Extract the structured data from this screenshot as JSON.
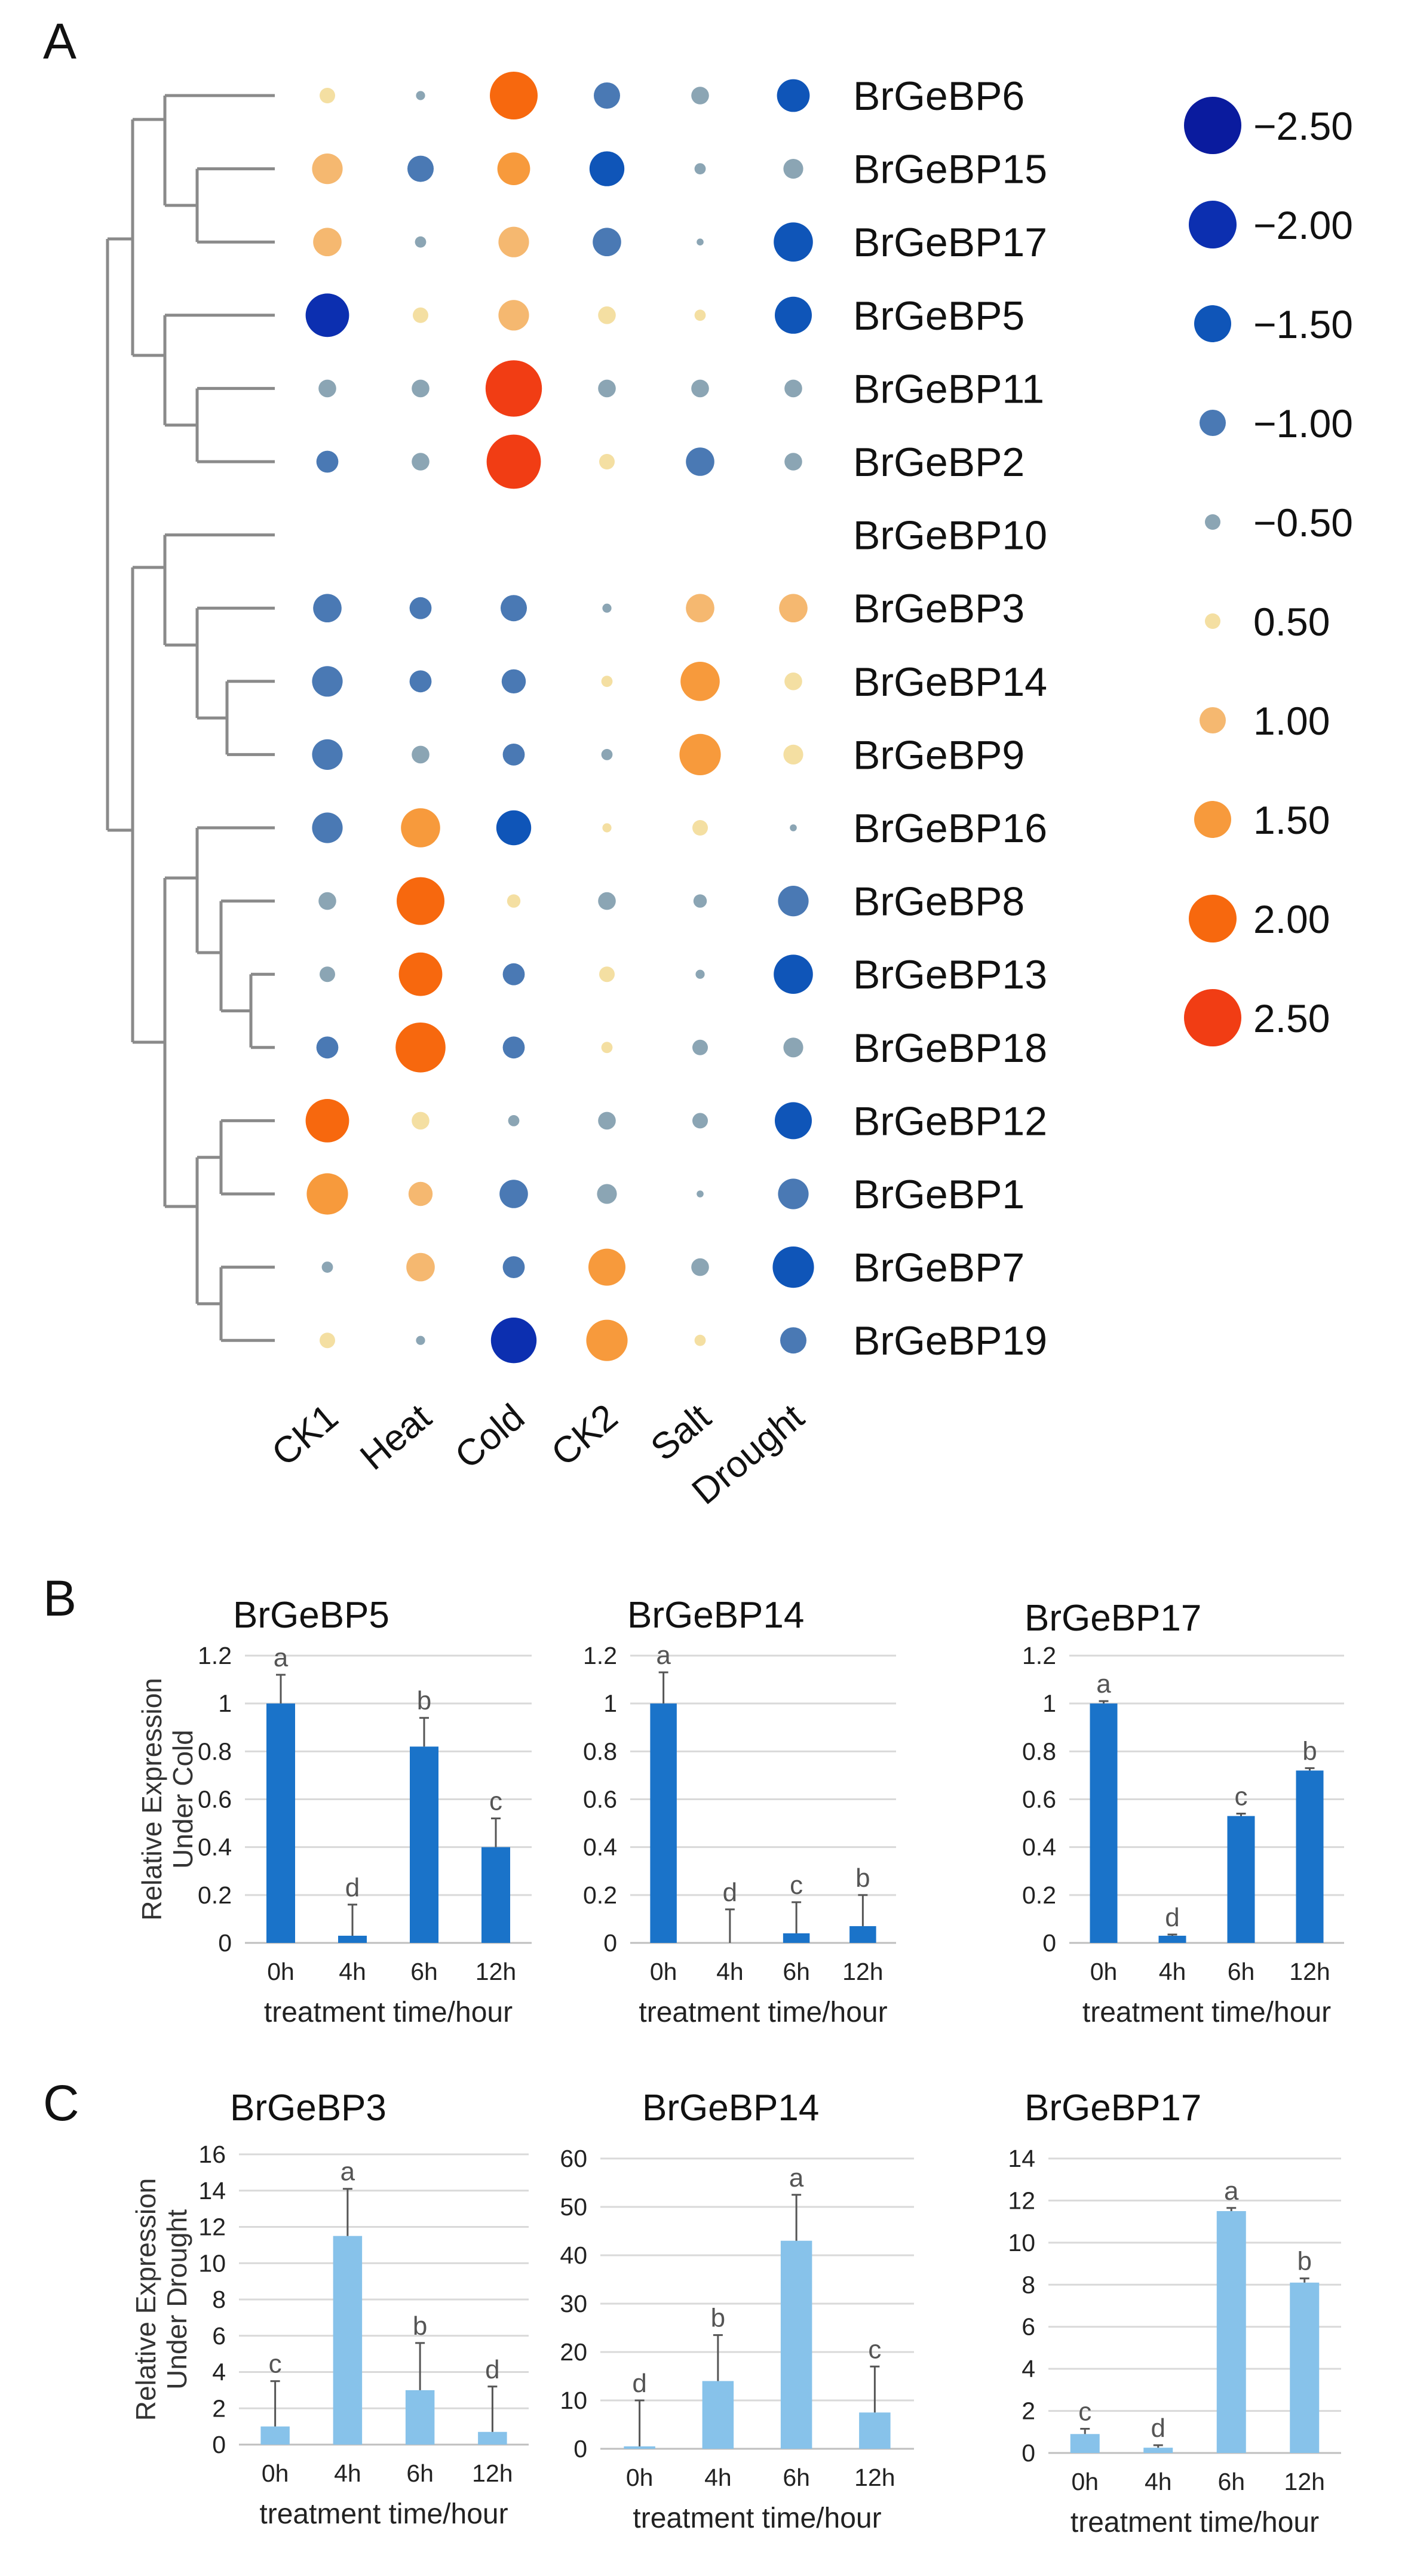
{
  "figure": {
    "panel_letters": [
      "A",
      "B",
      "C"
    ]
  },
  "colors": {
    "bar_cold": "#1a73c9",
    "bar_drought": "#87c2ea",
    "tree": "#8a8a8a",
    "bubble_scale": {
      "-2.50": "#0a1b9e",
      "-2.00": "#0c2fb0",
      "-1.50": "#0f55b8",
      "-1.00": "#4a79b4",
      "-0.50": "#8ba5b4",
      "0.50": "#f4dfa2",
      "1.00": "#f5b870",
      "1.50": "#f79a3c",
      "2.00": "#f7680e",
      "2.50": "#f13d14"
    }
  },
  "chart_data": [
    {
      "panel": "A",
      "type": "heatmap",
      "encoding": "bubble",
      "columns": [
        "CK1",
        "Heat",
        "Cold",
        "CK2",
        "Salt",
        "Drought"
      ],
      "rows": [
        "BrGeBP6",
        "BrGeBP15",
        "BrGeBP17",
        "BrGeBP5",
        "BrGeBP11",
        "BrGeBP2",
        "BrGeBP10",
        "BrGeBP3",
        "BrGeBP14",
        "BrGeBP9",
        "BrGeBP16",
        "BrGeBP8",
        "BrGeBP13",
        "BrGeBP18",
        "BrGeBP12",
        "BrGeBP1",
        "BrGeBP7",
        "BrGeBP19"
      ],
      "values": [
        [
          0.5,
          -0.2,
          2.0,
          -1.0,
          -0.6,
          -1.3
        ],
        [
          1.2,
          -1.0,
          1.3,
          -1.4,
          -0.3,
          -0.7
        ],
        [
          1.1,
          -0.3,
          1.2,
          -1.1,
          -0.1,
          -1.6
        ],
        [
          -1.8,
          0.5,
          1.2,
          0.6,
          0.3,
          -1.5
        ],
        [
          -0.6,
          -0.6,
          2.4,
          -0.6,
          -0.6,
          -0.6
        ],
        [
          -0.8,
          -0.6,
          2.3,
          0.5,
          -1.1,
          -0.6
        ],
        [
          null,
          null,
          null,
          null,
          null,
          null
        ],
        [
          -1.1,
          -0.8,
          -1.0,
          -0.2,
          1.1,
          1.1
        ],
        [
          -1.2,
          -0.8,
          -0.9,
          0.3,
          1.6,
          0.6
        ],
        [
          -1.2,
          -0.6,
          -0.8,
          -0.3,
          1.7,
          0.7
        ],
        [
          -1.2,
          1.6,
          -1.4,
          0.2,
          0.5,
          -0.1
        ],
        [
          -0.6,
          2.0,
          0.4,
          -0.6,
          -0.4,
          -1.2
        ],
        [
          -0.5,
          1.8,
          -0.8,
          0.5,
          -0.2,
          -1.6
        ],
        [
          -0.8,
          2.1,
          -0.8,
          0.3,
          -0.5,
          -0.7
        ],
        [
          1.8,
          0.6,
          -0.3,
          -0.6,
          -0.5,
          -1.5
        ],
        [
          1.7,
          0.9,
          -1.1,
          -0.7,
          -0.1,
          -1.2
        ],
        [
          -0.3,
          1.1,
          -0.8,
          1.5,
          -0.6,
          -1.7
        ],
        [
          0.5,
          -0.2,
          -1.9,
          1.7,
          0.3,
          -1.0
        ]
      ],
      "legend": [
        -2.5,
        -2.0,
        -1.5,
        -1.0,
        -0.5,
        0.5,
        1.0,
        1.5,
        2.0,
        2.5
      ],
      "legend_labels": [
        "−2.50",
        "−2.00",
        "−1.50",
        "−1.00",
        "−0.50",
        "0.50",
        "1.00",
        "1.50",
        "2.00",
        "2.50"
      ],
      "legend_position": "right",
      "dendrogram": "rows"
    },
    {
      "panel": "B",
      "type": "bar",
      "title": "BrGeBP5",
      "ylabel": "Relative Expression Under Cold",
      "xlabel": "treatment time/hour",
      "categories": [
        "0h",
        "4h",
        "6h",
        "12h"
      ],
      "values": [
        1.0,
        0.03,
        0.82,
        0.4
      ],
      "errors": [
        0.12,
        0.13,
        0.12,
        0.12
      ],
      "significance": [
        "a",
        "d",
        "b",
        "c"
      ],
      "ylim": [
        0,
        1.2
      ],
      "yticks": [
        "0",
        "0.2",
        "0.4",
        "0.6",
        "0.8",
        "1",
        "1.2"
      ],
      "color": "#1a73c9"
    },
    {
      "panel": "B",
      "type": "bar",
      "title": "BrGeBP14",
      "xlabel": "treatment time/hour",
      "categories": [
        "0h",
        "4h",
        "6h",
        "12h"
      ],
      "values": [
        1.0,
        0.0,
        0.04,
        0.07
      ],
      "errors": [
        0.13,
        0.14,
        0.13,
        0.13
      ],
      "significance": [
        "a",
        "d",
        "c",
        "b"
      ],
      "ylim": [
        0,
        1.2
      ],
      "yticks": [
        "0",
        "0.2",
        "0.4",
        "0.6",
        "0.8",
        "1",
        "1.2"
      ],
      "color": "#1a73c9"
    },
    {
      "panel": "B",
      "type": "bar",
      "title": "BrGeBP17",
      "xlabel": "treatment time/hour",
      "categories": [
        "0h",
        "4h",
        "6h",
        "12h"
      ],
      "values": [
        1.0,
        0.03,
        0.53,
        0.72
      ],
      "errors": [
        0.01,
        0.005,
        0.01,
        0.01
      ],
      "significance": [
        "a",
        "d",
        "c",
        "b"
      ],
      "ylim": [
        0,
        1.2
      ],
      "yticks": [
        "0",
        "0.2",
        "0.4",
        "0.6",
        "0.8",
        "1",
        "1.2"
      ],
      "color": "#1a73c9"
    },
    {
      "panel": "C",
      "type": "bar",
      "title": "BrGeBP3",
      "ylabel": "Relative Expression Under Drought",
      "xlabel": "treatment time/hour",
      "categories": [
        "0h",
        "4h",
        "6h",
        "12h"
      ],
      "values": [
        1.0,
        11.5,
        3.0,
        0.7
      ],
      "errors": [
        2.5,
        2.6,
        2.6,
        2.5
      ],
      "significance": [
        "c",
        "a",
        "b",
        "d"
      ],
      "ylim": [
        0,
        16
      ],
      "yticks": [
        "0",
        "2",
        "4",
        "6",
        "8",
        "10",
        "12",
        "14",
        "16"
      ],
      "color": "#87c2ea"
    },
    {
      "panel": "C",
      "type": "bar",
      "title": "BrGeBP14",
      "xlabel": "treatment time/hour",
      "categories": [
        "0h",
        "4h",
        "6h",
        "12h"
      ],
      "values": [
        0.5,
        14.0,
        43.0,
        7.5
      ],
      "errors": [
        9.5,
        9.5,
        9.5,
        9.5
      ],
      "significance": [
        "d",
        "b",
        "a",
        "c"
      ],
      "ylim": [
        0,
        60
      ],
      "yticks": [
        "0",
        "10",
        "20",
        "30",
        "40",
        "50",
        "60"
      ],
      "color": "#87c2ea"
    },
    {
      "panel": "C",
      "type": "bar",
      "title": "BrGeBP17",
      "xlabel": "treatment time/hour",
      "categories": [
        "0h",
        "4h",
        "6h",
        "12h"
      ],
      "values": [
        0.9,
        0.25,
        11.5,
        8.1
      ],
      "errors": [
        0.25,
        0.12,
        0.15,
        0.2
      ],
      "significance": [
        "c",
        "d",
        "a",
        "b"
      ],
      "ylim": [
        0,
        14
      ],
      "yticks": [
        "0",
        "2",
        "4",
        "6",
        "8",
        "10",
        "12",
        "14"
      ],
      "color": "#87c2ea"
    }
  ]
}
